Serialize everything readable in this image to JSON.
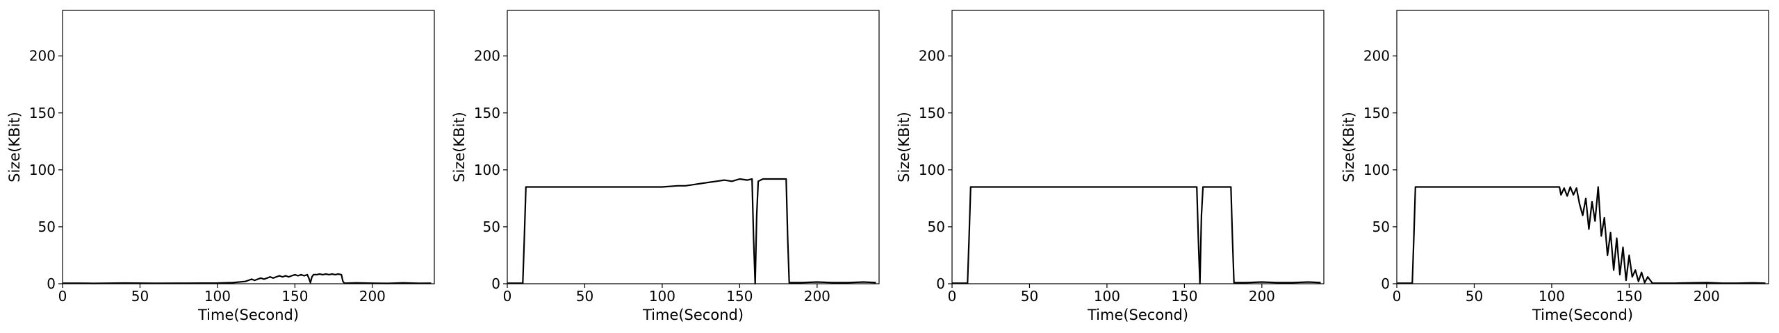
{
  "chart_data": [
    {
      "type": "line",
      "xlabel": "Time(Second)",
      "ylabel": "Size(KBit)",
      "xlim": [
        0,
        240
      ],
      "ylim": [
        0,
        240
      ],
      "xticks": [
        0,
        50,
        100,
        150,
        200
      ],
      "yticks": [
        0,
        50,
        100,
        150,
        200
      ],
      "grid": false,
      "series": [
        {
          "color": "#000000",
          "x": [
            0,
            10,
            20,
            40,
            60,
            80,
            100,
            110,
            118,
            120,
            122,
            124,
            126,
            128,
            130,
            132,
            134,
            136,
            138,
            140,
            142,
            144,
            146,
            148,
            150,
            152,
            154,
            156,
            158,
            159,
            160,
            161,
            162,
            164,
            166,
            168,
            170,
            172,
            174,
            176,
            178,
            180,
            181,
            182,
            190,
            200,
            210,
            220,
            230,
            238
          ],
          "y": [
            0.5,
            0.5,
            0.3,
            0.6,
            0.4,
            0.5,
            0.6,
            1,
            2,
            3,
            4,
            3,
            4,
            5,
            4,
            5,
            6,
            5,
            6,
            7,
            6,
            7,
            6,
            7,
            8,
            7,
            8,
            7,
            8,
            5,
            1,
            6,
            8,
            8,
            8.5,
            8,
            8.5,
            8,
            8.5,
            8,
            8.5,
            8,
            2,
            0.5,
            0.8,
            0.5,
            0.3,
            0.8,
            0.4,
            0.5
          ]
        }
      ]
    },
    {
      "type": "line",
      "xlabel": "Time(Second)",
      "ylabel": "Size(KBit)",
      "xlim": [
        0,
        240
      ],
      "ylim": [
        0,
        240
      ],
      "xticks": [
        0,
        50,
        100,
        150,
        200
      ],
      "yticks": [
        0,
        50,
        100,
        150,
        200
      ],
      "grid": false,
      "series": [
        {
          "color": "#000000",
          "x": [
            0,
            5,
            10,
            11,
            12,
            20,
            30,
            40,
            50,
            60,
            70,
            80,
            90,
            100,
            110,
            115,
            120,
            125,
            130,
            135,
            140,
            145,
            150,
            155,
            158,
            159,
            160,
            161,
            162,
            165,
            170,
            175,
            180,
            181,
            182,
            190,
            200,
            210,
            220,
            230,
            238
          ],
          "y": [
            0.5,
            0.5,
            0.5,
            40,
            85,
            85,
            85,
            85,
            85,
            85,
            85,
            85,
            85,
            85,
            86,
            86,
            87,
            88,
            89,
            90,
            91,
            90,
            92,
            91,
            92,
            40,
            0,
            60,
            90,
            92,
            92,
            92,
            92,
            40,
            1,
            1,
            1.5,
            1,
            1,
            1.5,
            1
          ]
        }
      ]
    },
    {
      "type": "line",
      "xlabel": "Time(Second)",
      "ylabel": "Size(KBit)",
      "xlim": [
        0,
        240
      ],
      "ylim": [
        0,
        240
      ],
      "xticks": [
        0,
        50,
        100,
        150,
        200
      ],
      "yticks": [
        0,
        50,
        100,
        150,
        200
      ],
      "grid": false,
      "series": [
        {
          "color": "#000000",
          "x": [
            0,
            5,
            10,
            11,
            12,
            20,
            30,
            40,
            50,
            60,
            70,
            80,
            90,
            100,
            110,
            120,
            130,
            140,
            150,
            155,
            158,
            159,
            160,
            161,
            162,
            165,
            170,
            175,
            180,
            181,
            182,
            190,
            200,
            210,
            220,
            230,
            238
          ],
          "y": [
            0.5,
            0.5,
            0.5,
            40,
            85,
            85,
            85,
            85,
            85,
            85,
            85,
            85,
            85,
            85,
            85,
            85,
            85,
            85,
            85,
            85,
            85,
            40,
            0,
            60,
            85,
            85,
            85,
            85,
            85,
            40,
            1,
            1,
            1.5,
            1,
            1,
            1.5,
            1
          ]
        }
      ]
    },
    {
      "type": "line",
      "xlabel": "Time(Second)",
      "ylabel": "Size(KBit)",
      "xlim": [
        0,
        240
      ],
      "ylim": [
        0,
        240
      ],
      "xticks": [
        0,
        50,
        100,
        150,
        200
      ],
      "yticks": [
        0,
        50,
        100,
        150,
        200
      ],
      "grid": false,
      "series": [
        {
          "color": "#000000",
          "x": [
            0,
            5,
            10,
            11,
            12,
            20,
            30,
            40,
            50,
            60,
            70,
            80,
            90,
            100,
            105,
            106,
            108,
            110,
            112,
            114,
            116,
            118,
            120,
            122,
            124,
            126,
            128,
            130,
            132,
            134,
            136,
            138,
            140,
            142,
            144,
            146,
            148,
            150,
            152,
            154,
            156,
            158,
            160,
            162,
            165,
            170,
            180,
            190,
            200,
            210,
            220,
            230,
            238
          ],
          "y": [
            0.5,
            0.5,
            0.5,
            40,
            85,
            85,
            85,
            85,
            85,
            85,
            85,
            85,
            85,
            85,
            85,
            78,
            84,
            77,
            85,
            78,
            84,
            70,
            60,
            75,
            48,
            72,
            55,
            85,
            42,
            58,
            25,
            45,
            12,
            40,
            8,
            32,
            3,
            25,
            6,
            12,
            2,
            10,
            1,
            6,
            0.5,
            0.5,
            0.5,
            0.8,
            1,
            0.5,
            0.5,
            0.8,
            0.5
          ]
        }
      ]
    }
  ]
}
